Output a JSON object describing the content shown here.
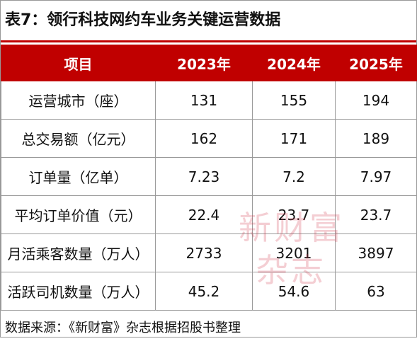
{
  "title": "表7：领行科技网约车业务关键运营数据",
  "table": {
    "header": [
      "项目",
      "2023年",
      "2024年",
      "2025年"
    ],
    "rows": [
      [
        "运营城市（座）",
        "131",
        "155",
        "194"
      ],
      [
        "总交易额（亿元）",
        "162",
        "171",
        "189"
      ],
      [
        "订单量（亿单）",
        "7.23",
        "7.2",
        "7.97"
      ],
      [
        "平均订单价值（元）",
        "22.4",
        "23.7",
        "23.7"
      ],
      [
        "月活乘客数量（万人）",
        "2733",
        "3201",
        "3897"
      ],
      [
        "活跃司机数量（万人）",
        "45.2",
        "54.6",
        "63"
      ]
    ]
  },
  "footer": "数据来源：《新财富》杂志根据招股书整理",
  "watermark": [
    "新财富",
    "杂志"
  ]
}
